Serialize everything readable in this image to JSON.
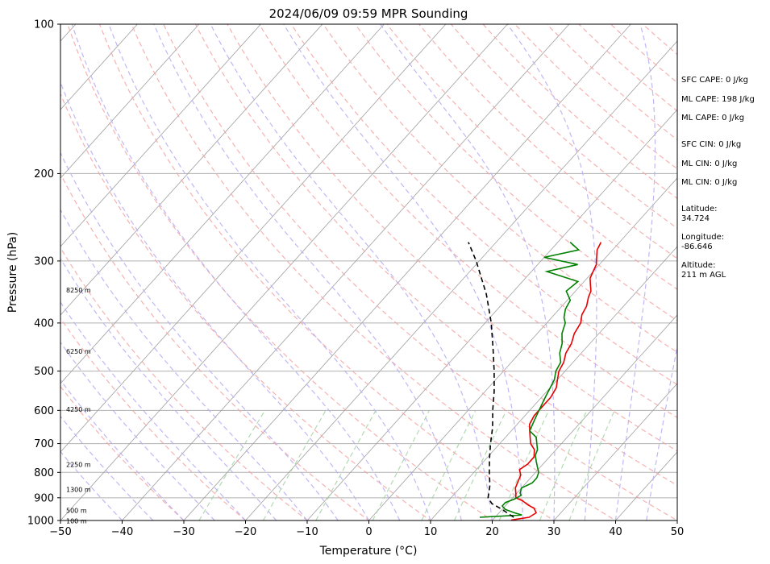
{
  "chart_data": {
    "type": "line",
    "title": "2024/06/09 09:59 MPR Sounding",
    "xlabel": "Temperature (°C)",
    "ylabel": "Pressure (hPa)",
    "xlim": [
      -50,
      50
    ],
    "ylim": [
      1000,
      100
    ],
    "y_scale": "log",
    "grid": true,
    "x_ticks": [
      "−50",
      "−40",
      "−30",
      "−20",
      "−10",
      "0",
      "10",
      "20",
      "30",
      "40",
      "50"
    ],
    "y_ticks": [
      "100",
      "200",
      "300",
      "400",
      "500",
      "600",
      "700",
      "800",
      "900",
      "1000"
    ],
    "series": [
      {
        "color": "#e60000",
        "pressure": [
          998,
          985,
          965,
          945,
          930,
          912,
          900,
          885,
          860,
          835,
          810,
          790,
          770,
          745,
          720,
          700,
          680,
          660,
          640,
          615,
          590,
          565,
          540,
          520,
          500,
          480,
          460,
          440,
          420,
          400,
          385,
          370,
          355,
          345,
          335,
          325,
          315,
          305,
          295,
          285,
          275
        ],
        "temperature": [
          23.0,
          25.5,
          26.0,
          25.0,
          23.5,
          22.0,
          20.5,
          20.0,
          19.0,
          18.5,
          18.0,
          17.0,
          17.5,
          17.5,
          16.5,
          15.0,
          14.0,
          13.0,
          12.0,
          11.5,
          11.5,
          11.5,
          11.0,
          10.0,
          9.0,
          8.5,
          7.5,
          7.0,
          6.0,
          5.5,
          4.5,
          4.0,
          3.0,
          2.5,
          1.5,
          0.5,
          0.0,
          -0.5,
          -1.5,
          -2.5,
          -3.0
        ]
      },
      {
        "color": "#008000",
        "pressure": [
          985,
          975,
          965,
          950,
          935,
          920,
          905,
          890,
          880,
          860,
          840,
          820,
          800,
          780,
          760,
          740,
          720,
          700,
          680,
          660,
          640,
          620,
          600,
          580,
          560,
          540,
          520,
          500,
          480,
          460,
          440,
          420,
          400,
          390,
          375,
          360,
          345,
          330,
          315,
          305,
          295,
          285,
          275
        ],
        "dewpoint": [
          17.5,
          24.0,
          22.5,
          20.5,
          19.5,
          19.5,
          20.5,
          21.0,
          20.5,
          20.0,
          21.0,
          21.0,
          20.5,
          19.5,
          18.5,
          17.5,
          17.0,
          16.0,
          15.0,
          13.0,
          12.5,
          12.0,
          11.5,
          11.0,
          10.5,
          10.0,
          9.5,
          8.5,
          8.0,
          6.5,
          5.5,
          4.0,
          3.0,
          2.0,
          1.0,
          0.5,
          -1.5,
          -1.0,
          -7.5,
          -3.5,
          -10.0,
          -5.5,
          -8.0
        ]
      },
      {
        "color": "#000000",
        "pressure": [
          985,
          950,
          925,
          900,
          850,
          800,
          750,
          700,
          650,
          600,
          550,
          500,
          450,
          400,
          350,
          300,
          275
        ],
        "parcel_temperature": [
          23.0,
          20.0,
          17.5,
          16.0,
          14.5,
          12.5,
          10.5,
          8.5,
          6.5,
          4.0,
          1.5,
          -1.5,
          -5.0,
          -9.0,
          -14.0,
          -20.5,
          -24.5
        ]
      }
    ],
    "height_labels": [
      "100 m",
      "500 m",
      "1300 m",
      "2250 m",
      "4250 m",
      "6250 m",
      "8250 m"
    ],
    "annotations": [
      "SFC CAPE: 0 J/kg",
      "ML CAPE: 198 J/kg",
      "ML CAPE: 0 J/kg",
      "SFC CIN: 0 J/kg",
      "ML CIN: 0 J/kg",
      "ML CIN: 0 J/kg",
      "Latitude:",
      "34.724",
      "Longitude:",
      "-86.646",
      "Altitude:",
      "211 m AGL"
    ]
  }
}
